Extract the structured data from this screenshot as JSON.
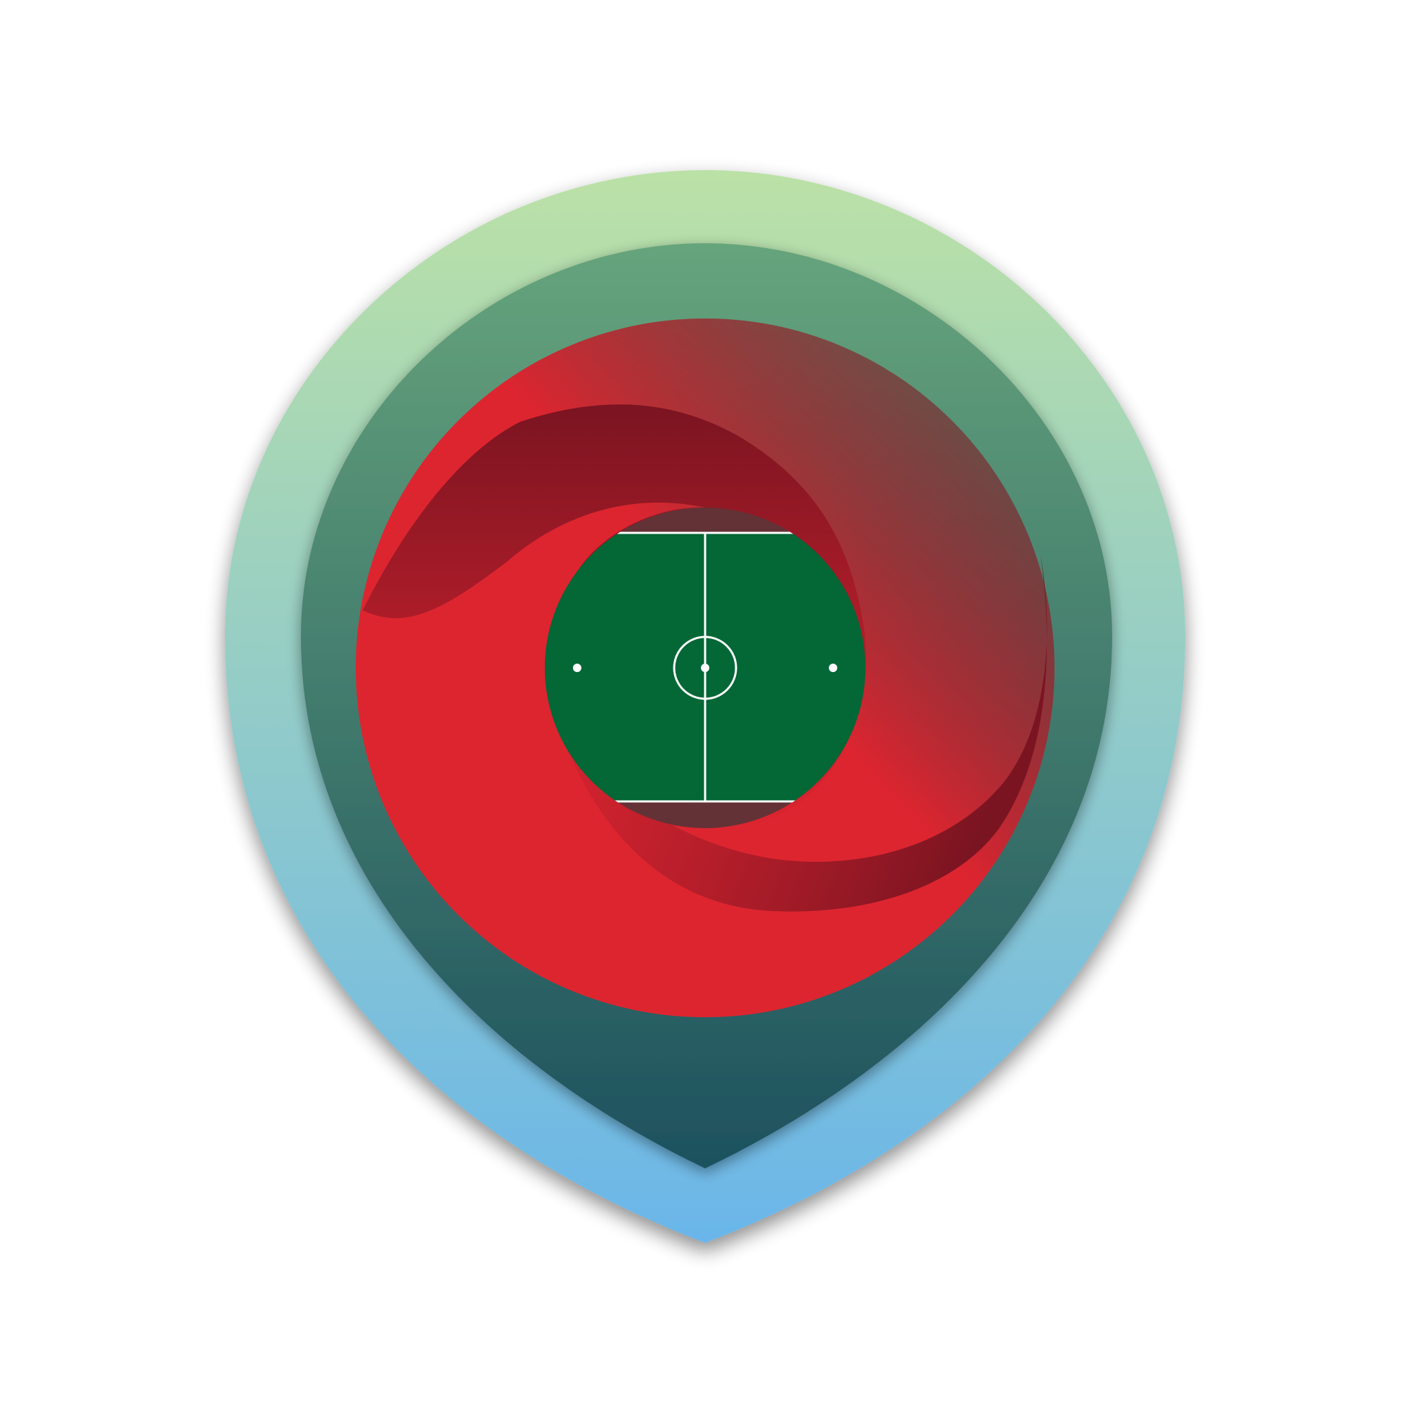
{
  "logo": {
    "name": "location-pin-football-pitch-logo",
    "colors": {
      "background": "#ffffff",
      "outer_gradient_top": "#bbe1a6",
      "outer_gradient_bottom": "#6ab6ea",
      "mid_gradient_top": "#66a47c",
      "mid_gradient_bottom": "#1d515e",
      "red_light": "#dd2530",
      "red_dark": "#7b1421",
      "pitch_green": "#036736",
      "pitch_margin": "#633236",
      "pitch_lines": "#ffffff"
    },
    "icons": [
      "map-pin-icon",
      "swirl-ring-icon",
      "football-pitch-icon"
    ]
  }
}
